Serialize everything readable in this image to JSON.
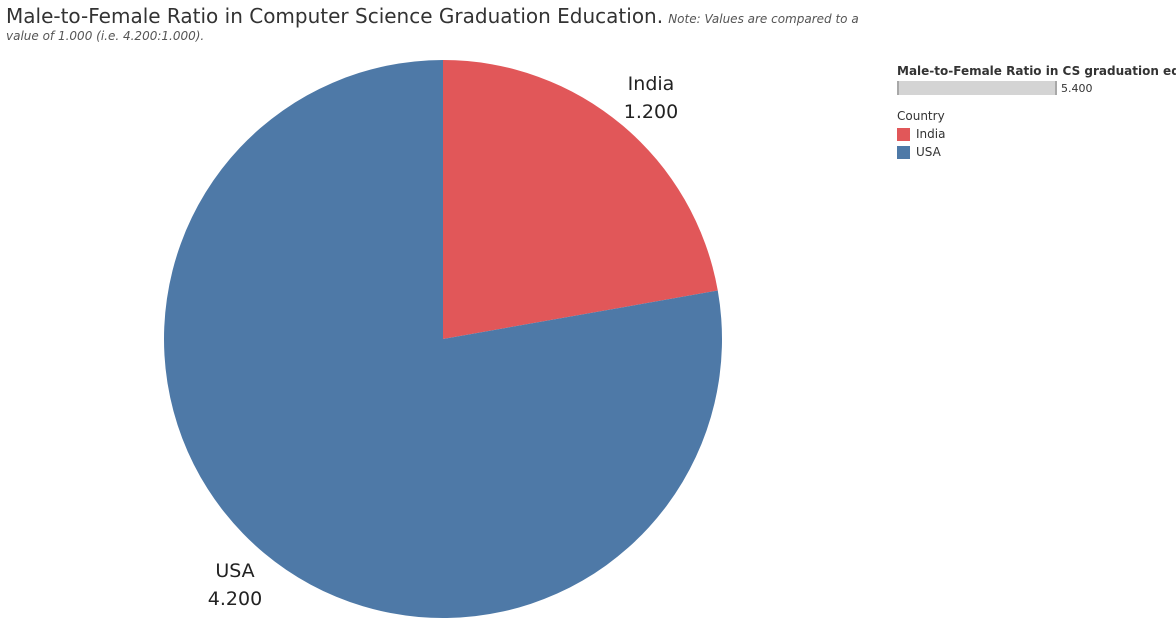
{
  "title": {
    "main": "Male-to-Female Ratio in Computer Science Graduation Education.",
    "note": "Note: Values are compared to a value of 1.000 (i.e. 4.200:1.000)."
  },
  "legend": {
    "size_title": "Male-to-Female Ratio in CS graduation education",
    "size_value": "5.400",
    "color_title": "Country"
  },
  "chart_data": {
    "type": "pie",
    "title": "Male-to-Female Ratio in Computer Science Graduation Education.",
    "slices": [
      {
        "label": "India",
        "value": 1.2,
        "value_label": "1.200",
        "color": "#e15759"
      },
      {
        "label": "USA",
        "value": 4.2,
        "value_label": "4.200",
        "color": "#4e79a7"
      }
    ],
    "legend_placement": "top-right"
  }
}
